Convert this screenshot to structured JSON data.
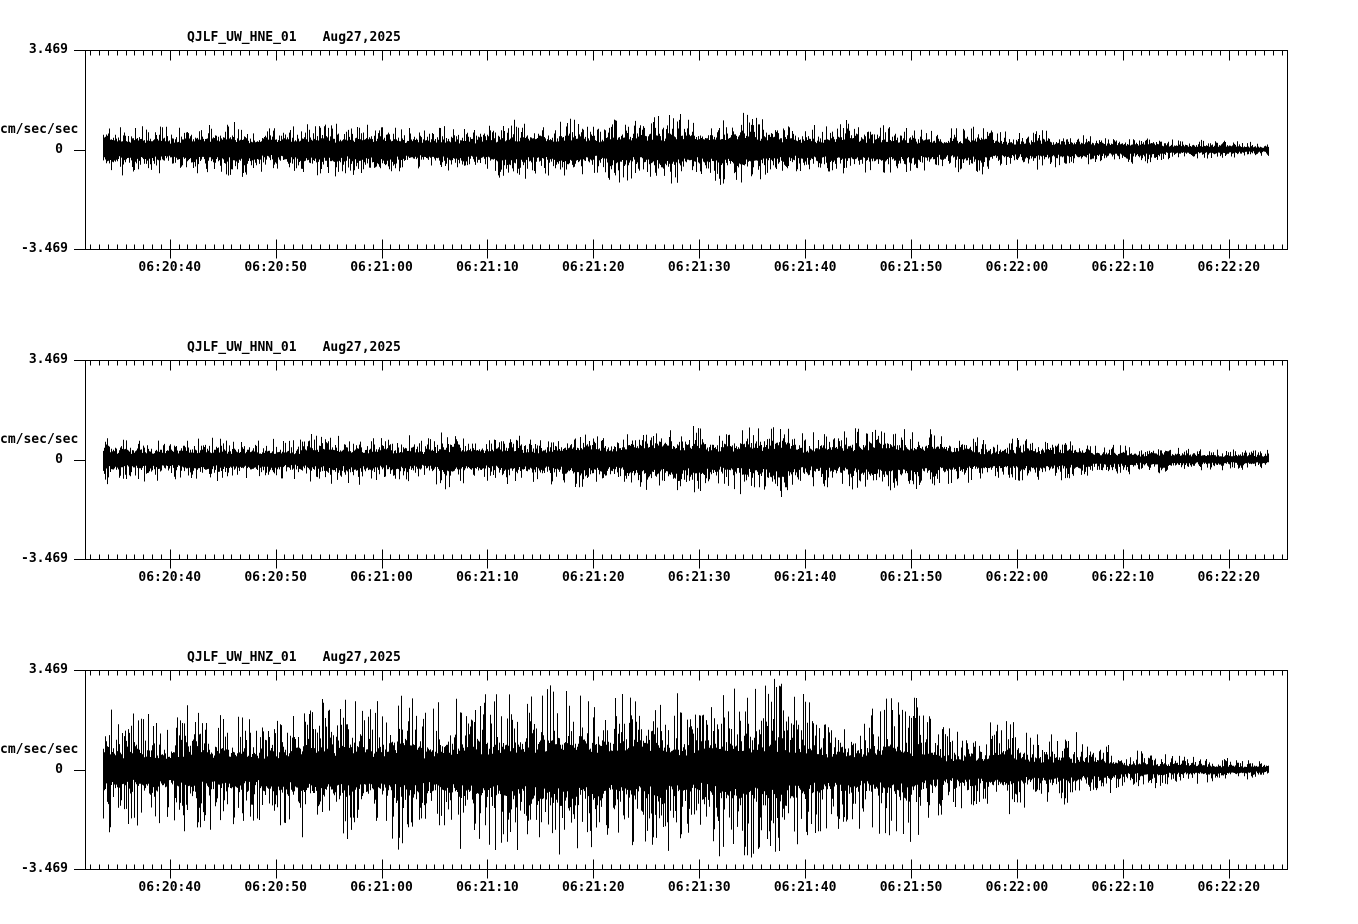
{
  "page": {
    "background": "#ffffff",
    "foreground": "#000000",
    "kind": "seismogram strip-chart display, three components of one station"
  },
  "y_axis": {
    "max_label": "3.469",
    "zero_label": "0",
    "min_label": "-3.469",
    "units": "cm/sec/sec"
  },
  "time_axis": {
    "labels": [
      "06:20:40",
      "06:20:50",
      "06:21:00",
      "06:21:10",
      "06:21:20",
      "06:21:30",
      "06:21:40",
      "06:21:50",
      "06:22:00",
      "06:22:10",
      "06:22:20"
    ],
    "label_offsets_s": [
      8,
      18,
      28,
      38,
      48,
      58,
      68,
      78,
      88,
      98,
      108
    ],
    "duration_s": 113.5,
    "major_tick_interval_s": 10,
    "minor_ticks_per_major": 12
  },
  "chart_data": [
    {
      "type": "line",
      "station_channel": "QJLF_UW_HNE_01",
      "date": "Aug27,2025",
      "ylabel": "cm/sec/sec",
      "ylim": [
        -3.469,
        3.469
      ],
      "y_ticks": [
        3.469,
        0,
        -3.469
      ],
      "x_tick_labels": [
        "06:20:40",
        "06:20:50",
        "06:21:00",
        "06:21:10",
        "06:21:20",
        "06:21:30",
        "06:21:40",
        "06:21:50",
        "06:22:00",
        "06:22:10",
        "06:22:20"
      ],
      "description": "High-frequency acceleration noise burst; roughly constant +/-1 cm/sec/sec envelope with spikes to ~1.35 near 06:21:20, decaying after 06:21:55 to ~0.25 at trace end",
      "signal_start_s": 1.7,
      "signal_end_s": 111.7,
      "envelope_t_s": [
        1.7,
        12,
        22,
        32,
        40,
        44,
        48,
        52,
        56,
        61,
        67,
        73,
        79,
        85,
        91,
        97,
        103,
        108,
        111.7
      ],
      "envelope_amp": [
        0.9,
        0.95,
        1.0,
        1.0,
        1.05,
        1.3,
        1.1,
        1.35,
        1.15,
        1.2,
        1.1,
        1.05,
        1.0,
        0.85,
        0.68,
        0.55,
        0.42,
        0.32,
        0.25
      ],
      "core_fraction": 0.42,
      "seed": 101
    },
    {
      "type": "line",
      "station_channel": "QJLF_UW_HNN_01",
      "date": "Aug27,2025",
      "ylabel": "cm/sec/sec",
      "ylim": [
        -3.469,
        3.469
      ],
      "y_ticks": [
        3.469,
        0,
        -3.469
      ],
      "x_tick_labels": [
        "06:20:40",
        "06:20:50",
        "06:21:00",
        "06:21:10",
        "06:21:20",
        "06:21:30",
        "06:21:40",
        "06:21:50",
        "06:22:00",
        "06:22:10",
        "06:22:20"
      ],
      "description": "High-frequency acceleration noise; envelope ~0.8-1.2 cm/sec/sec with largest spikes (~1.35) near 06:21:35, decaying after 06:21:55 to ~0.3 at trace end",
      "signal_start_s": 1.7,
      "signal_end_s": 111.7,
      "envelope_t_s": [
        1.7,
        12,
        22,
        32,
        40,
        46,
        51,
        56,
        60,
        64,
        68,
        73,
        78,
        83,
        88,
        94,
        100,
        106,
        111.7
      ],
      "envelope_amp": [
        0.8,
        0.85,
        0.9,
        0.92,
        1.0,
        1.1,
        1.2,
        1.1,
        1.2,
        1.35,
        1.15,
        1.2,
        1.05,
        0.95,
        0.8,
        0.62,
        0.5,
        0.4,
        0.3
      ],
      "core_fraction": 0.42,
      "seed": 202
    },
    {
      "type": "line",
      "station_channel": "QJLF_UW_HNZ_01",
      "date": "Aug27,2025",
      "ylabel": "cm/sec/sec",
      "ylim": [
        -3.469,
        3.469
      ],
      "y_ticks": [
        3.469,
        0,
        -3.469
      ],
      "x_tick_labels": [
        "06:20:40",
        "06:20:50",
        "06:21:00",
        "06:21:10",
        "06:21:20",
        "06:21:30",
        "06:21:40",
        "06:21:50",
        "06:22:00",
        "06:22:10",
        "06:22:20"
      ],
      "description": "Vertical component, much stronger shaking; envelope grows from ~2.1 to full scale (3.469) between 06:21:15 and 06:21:30, then decays steadily after 06:22:00 to ~0.3 at trace end",
      "signal_start_s": 1.7,
      "signal_end_s": 111.7,
      "envelope_t_s": [
        1.7,
        10,
        18,
        26,
        34,
        40,
        45,
        50,
        55,
        60,
        65,
        70,
        75,
        79,
        83,
        88,
        93,
        98,
        103,
        108,
        111.7
      ],
      "envelope_amp": [
        2.1,
        2.3,
        2.4,
        2.7,
        2.9,
        3.2,
        3.45,
        3.2,
        3.45,
        3.3,
        2.9,
        2.5,
        2.3,
        2.4,
        1.9,
        1.5,
        1.2,
        0.85,
        0.6,
        0.42,
        0.3
      ],
      "core_fraction": 0.3,
      "seed": 303
    }
  ]
}
